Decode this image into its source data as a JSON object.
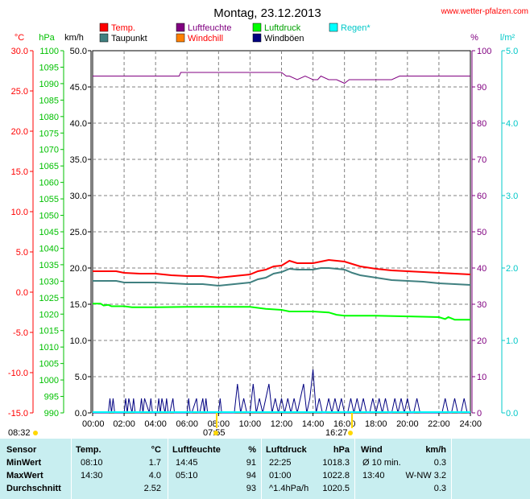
{
  "chart_data": {
    "type": "line",
    "title": "Montag, 23.12.2013",
    "source": "www.wetter-pfalzen.com",
    "legend": [
      {
        "label": "Temp.",
        "color": "#ff0000"
      },
      {
        "label": "Luftfeuchte",
        "color": "#800080"
      },
      {
        "label": "Luftdruck",
        "color": "#00ff00"
      },
      {
        "label": "Regen*",
        "color": "#00ffff"
      },
      {
        "label": "Taupunkt",
        "color": "#408080"
      },
      {
        "label": "Windchill",
        "color": "#ff8000"
      },
      {
        "label": "Windböen",
        "color": "#000080"
      }
    ],
    "axes": {
      "temp": {
        "unit": "°C",
        "range": [
          -15,
          30
        ],
        "ticks": [
          "30.0",
          "25.0",
          "20.0",
          "15.0",
          "10.0",
          "5.0",
          "0.0",
          "-5.0",
          "-10.0",
          "-15.0"
        ],
        "color": "#ff0000"
      },
      "pressure": {
        "unit": "hPa",
        "range": [
          990,
          1100
        ],
        "color": "#00c000"
      },
      "wind": {
        "unit": "km/h",
        "range": [
          0,
          50
        ],
        "ticks": [
          "50.0",
          "45.0",
          "40.0",
          "35.0",
          "30.0",
          "25.0",
          "20.0",
          "15.0",
          "10.0",
          "5.0",
          "0.0"
        ],
        "color": "#000000"
      },
      "humidity": {
        "unit": "%",
        "range": [
          0,
          100
        ],
        "ticks": [
          "100",
          "90",
          "80",
          "70",
          "60",
          "50",
          "40",
          "30",
          "20",
          "10",
          "0"
        ],
        "color": "#800080"
      },
      "rain": {
        "unit": "l/m²",
        "range": [
          0,
          5
        ],
        "ticks": [
          "5.0",
          "4.0",
          "3.0",
          "2.0",
          "1.0",
          "0.0"
        ],
        "color": "#00d0d0"
      },
      "x": {
        "ticks": [
          "00:00",
          "02:00",
          "04:00",
          "06:00",
          "08:00",
          "10:00",
          "12:00",
          "14:00",
          "16:00",
          "18:00",
          "20:00",
          "22:00",
          "24:00"
        ]
      }
    },
    "sun": {
      "sunrise": "08:32",
      "solar_noon_label": "07:55",
      "sunset": "16:27"
    },
    "series": [
      {
        "name": "Luftfeuchte",
        "axis": "humidity",
        "x": [
          0,
          5.5,
          5.6,
          6,
          12,
          12.3,
          12.5,
          13,
          13.5,
          14,
          14.3,
          14.5,
          15,
          15.5,
          16,
          16.3,
          17,
          18,
          19,
          19.5,
          20,
          22,
          24
        ],
        "y": [
          93,
          93,
          94,
          94,
          94,
          93,
          93,
          92,
          93,
          92,
          92,
          93,
          92,
          92,
          91,
          92,
          92,
          92,
          92,
          93,
          93,
          93,
          93
        ]
      },
      {
        "name": "Temp.",
        "axis": "temp",
        "x": [
          0,
          1.5,
          2,
          3,
          4,
          5,
          6,
          7,
          8,
          9,
          10,
          10.5,
          11,
          11.5,
          12,
          12.5,
          13,
          14,
          14.5,
          15,
          16,
          16.5,
          17,
          18,
          19,
          20,
          21,
          22,
          23,
          24
        ],
        "y": [
          2.6,
          2.6,
          2.4,
          2.3,
          2.3,
          2.1,
          2.0,
          2.0,
          1.8,
          2.0,
          2.2,
          2.6,
          2.8,
          3.2,
          3.3,
          3.9,
          3.6,
          3.6,
          3.8,
          4.0,
          3.8,
          3.5,
          3.2,
          2.9,
          2.7,
          2.6,
          2.5,
          2.4,
          2.3,
          2.2
        ]
      },
      {
        "name": "Taupunkt",
        "axis": "temp",
        "x": [
          0,
          1.5,
          2,
          3,
          4,
          5,
          6,
          7,
          8,
          9,
          10,
          10.5,
          11,
          11.5,
          12,
          12.5,
          13,
          14,
          14.5,
          15,
          16,
          16.5,
          17,
          18,
          19,
          20,
          21,
          22,
          23,
          24
        ],
        "y": [
          1.4,
          1.4,
          1.2,
          1.2,
          1.2,
          1.1,
          1.0,
          1.0,
          0.8,
          1.0,
          1.2,
          1.6,
          1.8,
          2.3,
          2.5,
          2.9,
          2.8,
          2.8,
          3.0,
          3.0,
          2.8,
          2.4,
          2.1,
          1.8,
          1.5,
          1.4,
          1.3,
          1.1,
          1.0,
          0.9
        ]
      },
      {
        "name": "Luftdruck",
        "axis": "pressure",
        "x": [
          0,
          0.5,
          0.7,
          1.0,
          1.2,
          2.0,
          2.5,
          4.0,
          6.0,
          8.0,
          10.0,
          10.5,
          11.0,
          12.0,
          12.5,
          13.0,
          14.0,
          15.0,
          15.5,
          16.0,
          18.0,
          20.0,
          22.0,
          22.4,
          22.6,
          23.0,
          24.0
        ],
        "y": [
          1023.2,
          1023.2,
          1022.6,
          1022.8,
          1022.4,
          1022.4,
          1022.1,
          1022.1,
          1022.2,
          1022.2,
          1022.2,
          1021.9,
          1021.6,
          1021.3,
          1020.8,
          1020.8,
          1020.8,
          1020.5,
          1019.8,
          1019.5,
          1019.5,
          1019.3,
          1019.1,
          1018.5,
          1019.1,
          1018.3,
          1018.3
        ]
      },
      {
        "name": "Windböen",
        "axis": "wind",
        "x": [
          0,
          1,
          1.1,
          1.2,
          1.3,
          1.4,
          2,
          2.1,
          2.2,
          2.3,
          2.5,
          2.6,
          2.7,
          3,
          3.1,
          3.2,
          3.3,
          3.6,
          3.7,
          3.8,
          4.1,
          4.2,
          4.3,
          4.4,
          4.6,
          4.7,
          4.8,
          4.9,
          5.1,
          5.2,
          5.3,
          6,
          6.1,
          6.2,
          6.3,
          6.6,
          6.7,
          6.8,
          7,
          7.1,
          7.2,
          7.3,
          8,
          8.1,
          8.2,
          8.3,
          9,
          9.2,
          9.4,
          9.6,
          9.8,
          10,
          10.2,
          10.4,
          10.6,
          10.8,
          11,
          11.2,
          11.4,
          11.6,
          11.8,
          12,
          12.2,
          12.4,
          12.6,
          12.8,
          13,
          13.2,
          13.4,
          13.6,
          13.8,
          14,
          14.2,
          14.4,
          14.6,
          14.8,
          15,
          15.2,
          15.4,
          15.6,
          15.8,
          16,
          16.2,
          16.4,
          16.6,
          16.8,
          17,
          17.2,
          17.4,
          17.6,
          17.8,
          18,
          18.2,
          18.4,
          18.6,
          18.8,
          19,
          19.2,
          19.4,
          19.6,
          19.8,
          20,
          20.2,
          20.4,
          20.6,
          20.8,
          21,
          21.2,
          21.4,
          21.6,
          21.8,
          22,
          22.2,
          22.4,
          22.6,
          22.8,
          23,
          23.2,
          23.4,
          23.6,
          23.8,
          24
        ],
        "y": [
          0,
          0,
          2,
          0,
          2,
          0,
          0,
          2,
          0,
          2,
          0,
          2,
          0,
          0,
          2,
          0,
          2,
          0,
          2,
          0,
          0,
          2,
          0,
          2,
          0,
          2,
          0,
          0,
          2,
          0,
          0,
          0,
          2,
          0,
          0,
          2,
          0,
          0,
          2,
          0,
          2,
          0,
          0,
          2,
          0,
          0,
          0,
          4,
          0,
          2,
          0,
          0,
          4,
          0,
          2,
          0,
          2,
          4,
          0,
          2,
          0,
          2,
          0,
          2,
          0,
          2,
          0,
          2,
          4,
          0,
          2,
          6,
          0,
          2,
          0,
          0,
          2,
          0,
          2,
          0,
          2,
          0,
          0,
          2,
          0,
          2,
          0,
          2,
          0,
          0,
          2,
          0,
          2,
          0,
          2,
          0,
          0,
          2,
          0,
          2,
          0,
          2,
          0,
          0,
          2,
          0,
          0,
          0,
          0,
          0,
          0,
          0,
          0,
          2,
          0,
          0,
          2,
          0,
          0,
          2,
          0,
          0
        ]
      }
    ]
  },
  "table": {
    "headers": {
      "sensor": "Sensor",
      "temp": "Temp.",
      "temp_unit": "°C",
      "hum": "Luftfeuchte",
      "hum_unit": "%",
      "press": "Luftdruck",
      "press_unit": "hPa",
      "wind": "Wind",
      "wind_unit": "km/h"
    },
    "rows": [
      {
        "label": "MinWert",
        "t_time": "08:10",
        "t_val": "1.7",
        "h_time": "14:45",
        "h_val": "91",
        "p_time": "22:25",
        "p_val": "1018.3",
        "w_time": "Ø 10 min.",
        "w_val": "0.3"
      },
      {
        "label": "MaxWert",
        "t_time": "14:30",
        "t_val": "4.0",
        "h_time": "05:10",
        "h_val": "94",
        "p_time": "01:00",
        "p_val": "1022.8",
        "w_time": "13:40",
        "w_val": "W-NW 3.2"
      },
      {
        "label": "Durchschnitt",
        "t_time": "",
        "t_val": "2.52",
        "h_time": "",
        "h_val": "93",
        "p_time": "^1.4hPa/h",
        "p_val": "1020.5",
        "w_time": "",
        "w_val": "0.3"
      }
    ]
  }
}
